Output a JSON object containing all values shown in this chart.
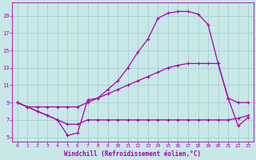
{
  "xlabel": "Windchill (Refroidissement éolien,°C)",
  "xlim": [
    -0.5,
    23.5
  ],
  "ylim": [
    4.5,
    20.5
  ],
  "xticks": [
    0,
    1,
    2,
    3,
    4,
    5,
    6,
    7,
    8,
    9,
    10,
    11,
    12,
    13,
    14,
    15,
    16,
    17,
    18,
    19,
    20,
    21,
    22,
    23
  ],
  "yticks": [
    5,
    7,
    9,
    11,
    13,
    15,
    17,
    19
  ],
  "bg_color": "#c8e8e8",
  "grid_color": "#a0c8c8",
  "line_color": "#aa00aa",
  "line1_x": [
    0,
    1,
    2,
    3,
    4,
    5,
    6,
    7,
    8,
    9,
    10,
    11,
    12,
    13,
    14,
    15,
    16,
    17,
    18,
    19,
    20,
    21,
    22,
    23
  ],
  "line1_y": [
    9,
    8.5,
    8,
    7.5,
    7,
    6.5,
    6.5,
    7,
    7,
    7,
    7,
    7,
    7,
    7,
    7,
    7,
    7,
    7,
    7,
    7,
    7,
    7,
    7.2,
    7.5
  ],
  "line2_x": [
    0,
    1,
    2,
    3,
    4,
    5,
    6,
    7,
    8,
    9,
    10,
    11,
    12,
    13,
    14,
    15,
    16,
    17,
    18,
    19,
    20,
    21,
    22,
    23
  ],
  "line2_y": [
    9,
    8.5,
    8.5,
    8.5,
    8.5,
    8.5,
    8.5,
    9,
    9.5,
    10,
    10.5,
    11,
    11.5,
    12,
    12.5,
    13,
    13.3,
    13.5,
    13.5,
    13.5,
    13.5,
    9.5,
    9,
    9
  ],
  "line3_x": [
    0,
    1,
    2,
    3,
    4,
    5,
    6,
    7,
    8,
    9,
    10,
    11,
    12,
    13,
    14,
    15,
    16,
    17,
    18,
    19,
    20,
    21,
    22,
    23
  ],
  "line3_y": [
    9,
    8.5,
    8,
    7.5,
    7,
    5.2,
    5.5,
    9.3,
    9.5,
    10.5,
    11.5,
    13,
    14.8,
    16.3,
    18.7,
    19.3,
    19.5,
    19.5,
    19.2,
    18.0,
    13.5,
    9.5,
    6.3,
    7.3
  ]
}
